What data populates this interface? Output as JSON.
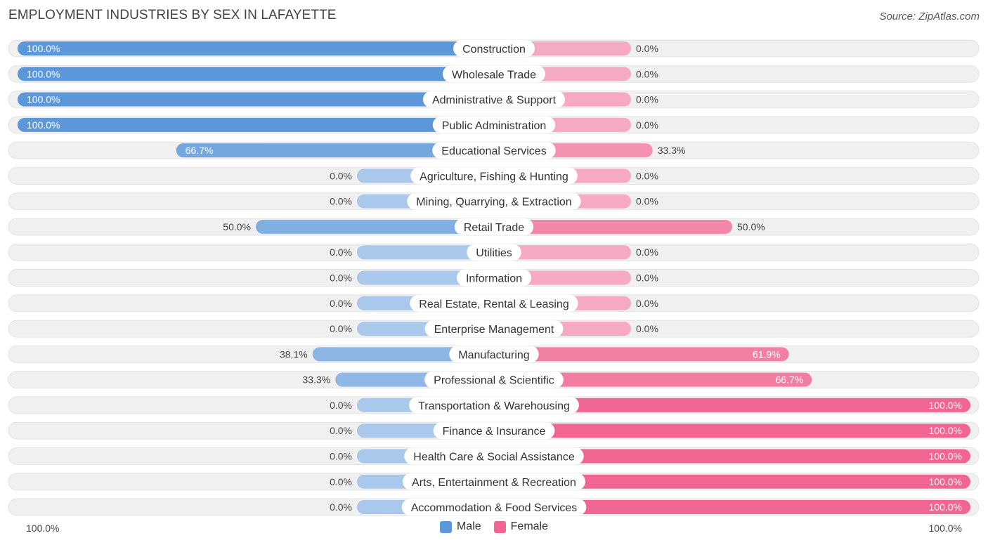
{
  "title": "EMPLOYMENT INDUSTRIES BY SEX IN LAFAYETTE",
  "source": "Source: ZipAtlas.com",
  "colors": {
    "male_strong": "#5b97d9",
    "male_light": "#a9c8ec",
    "female_strong": "#f06592",
    "female_light": "#f6a9c2",
    "track": "#f0f0f0"
  },
  "chart_data": {
    "type": "bar",
    "orientation": "horizontal-diverging",
    "categories": [
      "Construction",
      "Wholesale Trade",
      "Administrative & Support",
      "Public Administration",
      "Educational Services",
      "Agriculture, Fishing & Hunting",
      "Mining, Quarrying, & Extraction",
      "Retail Trade",
      "Utilities",
      "Information",
      "Real Estate, Rental & Leasing",
      "Enterprise Management",
      "Manufacturing",
      "Professional & Scientific",
      "Transportation & Warehousing",
      "Finance & Insurance",
      "Health Care & Social Assistance",
      "Arts, Entertainment & Recreation",
      "Accommodation & Food Services"
    ],
    "series": [
      {
        "name": "Male",
        "values": [
          100.0,
          100.0,
          100.0,
          100.0,
          66.7,
          0.0,
          0.0,
          50.0,
          0.0,
          0.0,
          0.0,
          0.0,
          38.1,
          33.3,
          0.0,
          0.0,
          0.0,
          0.0,
          0.0
        ],
        "labels": [
          "100.0%",
          "100.0%",
          "100.0%",
          "100.0%",
          "66.7%",
          "0.0%",
          "0.0%",
          "50.0%",
          "0.0%",
          "0.0%",
          "0.0%",
          "0.0%",
          "38.1%",
          "33.3%",
          "0.0%",
          "0.0%",
          "0.0%",
          "0.0%",
          "0.0%"
        ]
      },
      {
        "name": "Female",
        "values": [
          0.0,
          0.0,
          0.0,
          0.0,
          33.3,
          0.0,
          0.0,
          50.0,
          0.0,
          0.0,
          0.0,
          0.0,
          61.9,
          66.7,
          100.0,
          100.0,
          100.0,
          100.0,
          100.0
        ],
        "labels": [
          "0.0%",
          "0.0%",
          "0.0%",
          "0.0%",
          "33.3%",
          "0.0%",
          "0.0%",
          "50.0%",
          "0.0%",
          "0.0%",
          "0.0%",
          "0.0%",
          "61.9%",
          "66.7%",
          "100.0%",
          "100.0%",
          "100.0%",
          "100.0%",
          "100.0%"
        ]
      }
    ],
    "xlim": [
      0,
      100
    ],
    "axis_labels": {
      "left": "100.0%",
      "right": "100.0%"
    },
    "legend": {
      "placement": "bottom-center",
      "entries": [
        "Male",
        "Female"
      ]
    }
  }
}
